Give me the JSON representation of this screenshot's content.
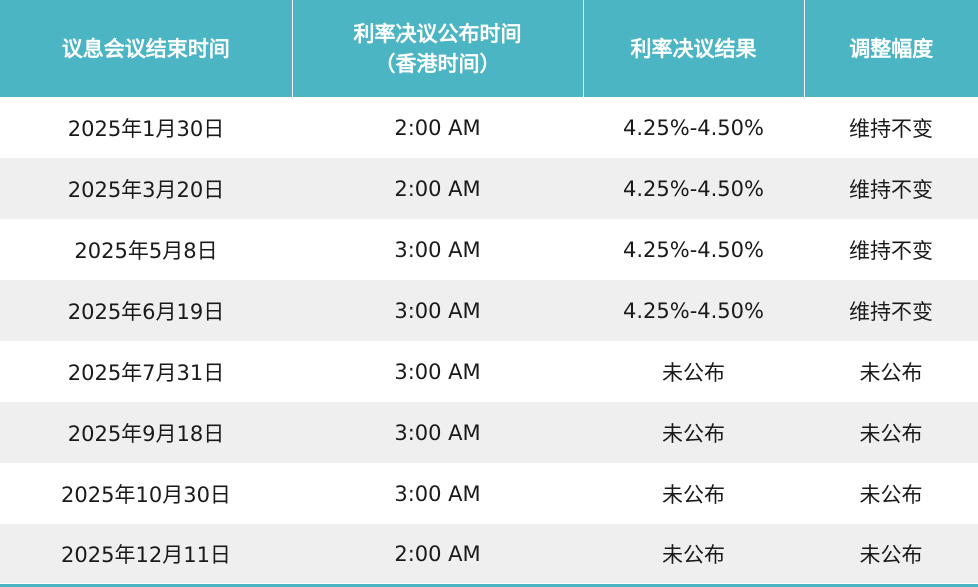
{
  "header": {
    "col1": "议息会议结束时间",
    "col2_line1": "利率决议公布时间",
    "col2_line2": "（香港时间）",
    "col3": "利率决议结果",
    "col4": "调整幅度"
  },
  "rows": [
    {
      "date": "2025年1月30日",
      "time": "2:00 AM",
      "result": "4.25%-4.50%",
      "change": "维持不变"
    },
    {
      "date": "2025年3月20日",
      "time": "2:00 AM",
      "result": "4.25%-4.50%",
      "change": "维持不变"
    },
    {
      "date": "2025年5月8日",
      "time": "3:00 AM",
      "result": "4.25%-4.50%",
      "change": "维持不变"
    },
    {
      "date": "2025年6月19日",
      "time": "3:00 AM",
      "result": "4.25%-4.50%",
      "change": "维持不变"
    },
    {
      "date": "2025年7月31日",
      "time": "3:00 AM",
      "result": "未公布",
      "change": "未公布"
    },
    {
      "date": "2025年9月18日",
      "time": "3:00 AM",
      "result": "未公布",
      "change": "未公布"
    },
    {
      "date": "2025年10月30日",
      "time": "3:00 AM",
      "result": "未公布",
      "change": "未公布"
    },
    {
      "date": "2025年12月11日",
      "time": "2:00 AM",
      "result": "未公布",
      "change": "未公布"
    }
  ],
  "colors": {
    "header_bg": "#4cb5c4",
    "header_text": "#ffffff",
    "row_alt_bg": "#efefef"
  }
}
